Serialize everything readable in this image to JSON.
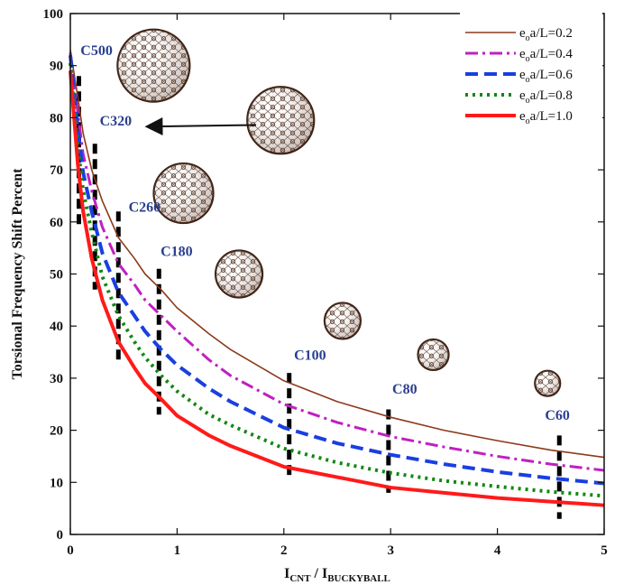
{
  "chart_data": {
    "type": "line",
    "xlabel": {
      "main": "I",
      "sub1": "CNT",
      "sep": " / I",
      "sub2": "BUCKYBALL"
    },
    "ylabel": "Torsional Frequency Shift Percent",
    "xlim": [
      0,
      5
    ],
    "ylim": [
      0,
      100
    ],
    "xticks": [
      "0",
      "1",
      "2",
      "3",
      "4",
      "5"
    ],
    "yticks": [
      "0",
      "10",
      "20",
      "30",
      "40",
      "50",
      "60",
      "70",
      "80",
      "90",
      "100"
    ],
    "legend_position": "top-right",
    "x": [
      0,
      0.07,
      0.12,
      0.2,
      0.3,
      0.45,
      0.6,
      0.7,
      0.85,
      1.0,
      1.3,
      1.5,
      2.0,
      2.5,
      3.0,
      3.5,
      4.0,
      4.5,
      5.0
    ],
    "series": [
      {
        "name": "e_o a/L=0.2",
        "label_parts": [
          "e",
          "o",
          "a/L=0.2"
        ],
        "color": "#8b3a1a",
        "dash": "solid",
        "width": 1.6,
        "values": [
          93,
          84,
          77,
          70,
          64,
          57,
          53,
          50,
          47,
          43.5,
          38.5,
          35.5,
          29.5,
          25.5,
          22.5,
          20,
          18,
          16.2,
          14.8
        ]
      },
      {
        "name": "e_o a/L=0.4",
        "label_parts": [
          "e",
          "o",
          "a/L=0.4"
        ],
        "color": "#c020c0",
        "dash": "dashdot",
        "width": 3,
        "values": [
          92.5,
          81,
          73,
          66,
          59,
          52,
          48,
          45,
          42,
          39,
          33.5,
          30.5,
          25,
          21.5,
          18.8,
          16.8,
          15,
          13.5,
          12.3
        ]
      },
      {
        "name": "e_o a/L=0.6",
        "label_parts": [
          "e",
          "o",
          "a/L=0.6"
        ],
        "color": "#1a3fe0",
        "dash": "dash",
        "width": 4,
        "values": [
          92,
          78,
          69.5,
          62,
          54,
          46.5,
          42,
          39,
          35.5,
          32.5,
          28,
          25.5,
          20.5,
          17.5,
          15.3,
          13.5,
          12,
          10.8,
          9.8
        ]
      },
      {
        "name": "e_o a/L=0.8",
        "label_parts": [
          "e",
          "o",
          "a/L=0.8"
        ],
        "color": "#118811",
        "dash": "dot",
        "width": 4,
        "values": [
          90.5,
          74.5,
          66,
          58,
          49.5,
          42,
          37,
          34,
          30.5,
          27.5,
          23,
          21,
          16.5,
          13.8,
          11.8,
          10.3,
          9.2,
          8.2,
          7.4
        ]
      },
      {
        "name": "e_o a/L=1.0",
        "label_parts": [
          "e",
          "o",
          "a/L=1.0"
        ],
        "color": "#ff1a1a",
        "dash": "solid",
        "width": 4,
        "values": [
          89,
          71,
          62,
          53,
          45,
          37,
          32,
          29,
          26,
          22.8,
          19,
          17,
          13,
          11,
          9,
          8,
          7,
          6.3,
          5.6
        ]
      }
    ],
    "markers": [
      {
        "label": "C500",
        "x": 0.08,
        "y_range": [
          59,
          88
        ],
        "tag_x": 0.07,
        "tag_y": 92
      },
      {
        "label": "C320",
        "x": 0.23,
        "y_range": [
          47,
          75
        ],
        "tag_x": 0.25,
        "tag_y": 78.5
      },
      {
        "label": "C260",
        "x": 0.45,
        "y_range": [
          33,
          62
        ],
        "tag_x": 0.52,
        "tag_y": 62
      },
      {
        "label": "C180",
        "x": 0.83,
        "y_range": [
          23,
          51
        ],
        "tag_x": 0.82,
        "tag_y": 53.5
      },
      {
        "label": "C100",
        "x": 2.05,
        "y_range": [
          11,
          31
        ],
        "tag_x": 2.07,
        "tag_y": 33.5
      },
      {
        "label": "C80",
        "x": 2.98,
        "y_range": [
          8,
          24
        ],
        "tag_x": 2.99,
        "tag_y": 27
      },
      {
        "label": "C60",
        "x": 4.58,
        "y_range": [
          3,
          19
        ],
        "tag_x": 4.42,
        "tag_y": 22
      }
    ],
    "buckyballs": [
      {
        "name": "C500",
        "x": 0.78,
        "y": 90,
        "r": 40
      },
      {
        "name": "C320",
        "x": 1.97,
        "y": 79.5,
        "r": 37
      },
      {
        "name": "C260",
        "x": 1.06,
        "y": 65.5,
        "r": 33
      },
      {
        "name": "C180",
        "x": 1.58,
        "y": 50,
        "r": 26
      },
      {
        "name": "C100",
        "x": 2.55,
        "y": 41,
        "r": 20
      },
      {
        "name": "C80",
        "x": 3.4,
        "y": 34.5,
        "r": 17
      },
      {
        "name": "C60",
        "x": 4.47,
        "y": 29,
        "r": 14
      }
    ],
    "arrow": {
      "from": [
        1.74,
        78.6
      ],
      "to": [
        0.73,
        78.3
      ]
    }
  }
}
